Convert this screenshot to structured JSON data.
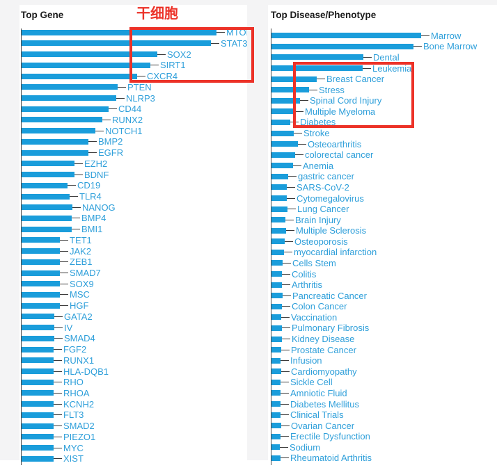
{
  "annotation": {
    "text": "干细胞"
  },
  "colors": {
    "bar": "#1a9ddb",
    "label": "#2e9fda",
    "axis": "#4a4a4a",
    "tick": "#3a3a3a",
    "title": "#1b1b1b",
    "annotation_red": "#ec3228",
    "page_background": "#f4f4f5",
    "card_background": "#ffffff"
  },
  "chart_data": [
    {
      "type": "bar",
      "orientation": "horizontal",
      "title": "Top Gene",
      "value_unit": "relative bar length in px (no numeric axis shown in image)",
      "categories": [
        "MTOR",
        "STAT3",
        "SOX2",
        "SIRT1",
        "CXCR4",
        "PTEN",
        "NLRP3",
        "CD44",
        "RUNX2",
        "NOTCH1",
        "BMP2",
        "EGFR",
        "EZH2",
        "BDNF",
        "CD19",
        "TLR4",
        "NANOG",
        "BMP4",
        "BMI1",
        "TET1",
        "JAK2",
        "ZEB1",
        "SMAD7",
        "SOX9",
        "MSC",
        "HGF",
        "GATA2",
        "IV",
        "SMAD4",
        "FGF2",
        "RUNX1",
        "HLA-DQB1",
        "RHO",
        "RHOA",
        "KCNH2",
        "FLT3",
        "SMAD2",
        "PIEZO1",
        "MYC",
        "XIST"
      ],
      "values": [
        280,
        272,
        195,
        185,
        166,
        138,
        136,
        125,
        116,
        106,
        96,
        96,
        76,
        76,
        66,
        69,
        73,
        72,
        72,
        55,
        55,
        55,
        55,
        55,
        55,
        55,
        47,
        47,
        47,
        46,
        46,
        46,
        46,
        46,
        46,
        46,
        46,
        46,
        46,
        46
      ],
      "highlighted_items": [
        "MTOR",
        "STAT3",
        "SOX2",
        "SIRT1",
        "CXCR4"
      ],
      "legend": "none",
      "grid": false
    },
    {
      "type": "bar",
      "orientation": "horizontal",
      "title": "Top Disease/Phenotype",
      "value_unit": "relative bar length in px (no numeric axis shown in image)",
      "categories": [
        "Marrow",
        "Bone Marrow",
        "Dental",
        "Leukemia",
        "Breast Cancer",
        "Stress",
        "Spinal Cord Injury",
        "Multiple Myeloma",
        "Diabetes",
        "Stroke",
        "Osteoarthritis",
        "colorectal cancer",
        "Anemia",
        "gastric cancer",
        "SARS-CoV-2",
        "Cytomegalovirus",
        "Lung Cancer",
        "Brain Injury",
        "Multiple Sclerosis",
        "Osteoporosis",
        "myocardial infarction",
        "Cells Stem",
        "Colitis",
        "Arthritis",
        "Pancreatic Cancer",
        "Colon Cancer",
        "Vaccination",
        "Pulmonary Fibrosis",
        "Kidney Disease",
        "Prostate Cancer",
        "Infusion",
        "Cardiomyopathy",
        "Sickle Cell",
        "Amniotic Fluid",
        "Diabetes Mellitus",
        "Clinical Trials",
        "Ovarian Cancer",
        "Erectile Dysfunction",
        "Sodium",
        "Rheumatoid Arthritis"
      ],
      "values": [
        215,
        204,
        132,
        131,
        65,
        54,
        41,
        34,
        27,
        32,
        38,
        34,
        31,
        24,
        22,
        22,
        23,
        20,
        21,
        19,
        18,
        16,
        15,
        15,
        16,
        15,
        14,
        15,
        15,
        14,
        13,
        14,
        13,
        13,
        13,
        13,
        14,
        13,
        12,
        13
      ],
      "highlighted_items": [
        "Leukemia",
        "Breast Cancer",
        "Stress",
        "Spinal Cord Injury",
        "Multiple Myeloma",
        "Diabetes"
      ],
      "legend": "none",
      "grid": false
    }
  ]
}
